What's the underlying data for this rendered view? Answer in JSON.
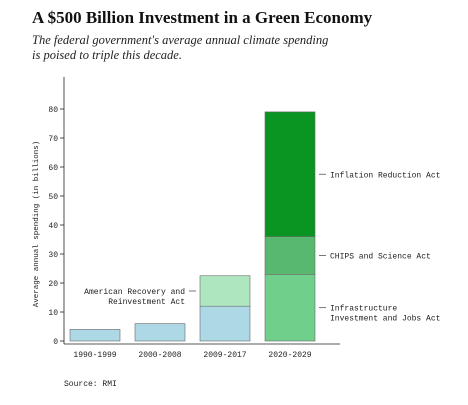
{
  "chart_data": {
    "type": "bar",
    "stacked": true,
    "title": "A $500 Billion Investment in a Green Economy",
    "subtitle": "The federal government's average annual climate spending is poised to triple this decade.",
    "ylabel": "Average annual spending (in billions)",
    "xlabel": "",
    "ylim": [
      0,
      80
    ],
    "yticks": [
      0,
      10,
      20,
      30,
      40,
      50,
      60,
      70,
      80
    ],
    "categories": [
      "1990-1999",
      "2000-2008",
      "2009-2017",
      "2020-2029"
    ],
    "series": [
      {
        "name": "",
        "color": "#add8e6",
        "values": [
          4,
          6,
          12,
          0
        ]
      },
      {
        "name": "American Recovery and Reinvestment Act",
        "color": "#aee6bf",
        "values": [
          0,
          0,
          10.5,
          0
        ]
      },
      {
        "name": "Infrastructure Investment and Jobs Act",
        "color": "#70cf8a",
        "values": [
          0,
          0,
          0,
          23
        ]
      },
      {
        "name": "CHIPS and Science Act",
        "color": "#58b870",
        "values": [
          0,
          0,
          0,
          13
        ]
      },
      {
        "name": "Inflation Reduction Act",
        "color": "#0a9422",
        "values": [
          0,
          0,
          0,
          43
        ]
      }
    ],
    "annotations": [
      {
        "lines": [
          "American Recovery and",
          "Reinvestment Act"
        ],
        "series": 1,
        "category": 2,
        "side": "left"
      },
      {
        "lines": [
          "Inflation Reduction Act"
        ],
        "series": 4,
        "category": 3,
        "side": "right"
      },
      {
        "lines": [
          "CHIPS and Science Act"
        ],
        "series": 3,
        "category": 3,
        "side": "right"
      },
      {
        "lines": [
          "Infrastructure",
          "Investment and Jobs Act"
        ],
        "series": 2,
        "category": 3,
        "side": "right"
      }
    ],
    "source": "Source: RMI"
  }
}
